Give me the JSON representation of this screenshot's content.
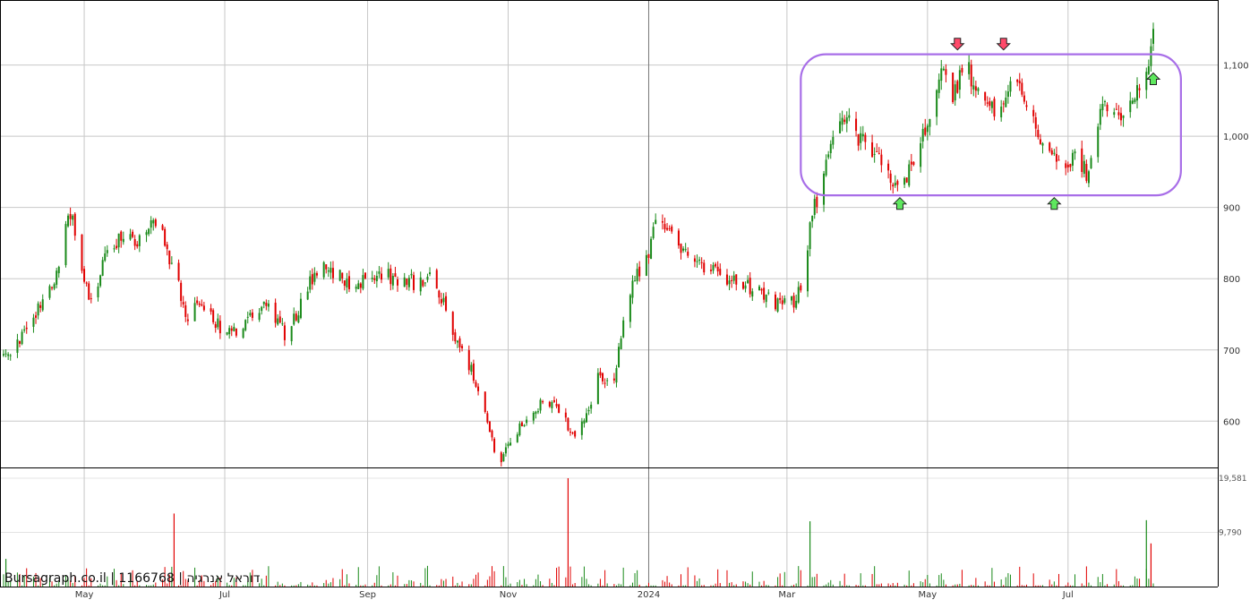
{
  "watermark": "Bursagraph.co.il | 1166768 | דוראל אנרגיה",
  "colors": {
    "up": "#1a8a1a",
    "down": "#e00000",
    "grid": "#c8c8c8",
    "frame": "#000000",
    "pattern_box": "#a86ee8",
    "arrow_up": "#5ee85e",
    "arrow_down": "#ff4a6a"
  },
  "chart_data": {
    "type": "candlestick",
    "title": "",
    "xlabel": "",
    "ylabel": "",
    "price_ylim": [
      535,
      1190
    ],
    "volume_ylim": [
      0,
      19581
    ],
    "price_ticks": [
      600,
      700,
      800,
      900,
      1000,
      1100
    ],
    "price_tick_labels": [
      "600",
      "700",
      "800",
      "900",
      "1,000",
      "1,100"
    ],
    "volume_ticks": [
      9790,
      19581
    ],
    "volume_tick_labels": [
      "9,790",
      "19,581"
    ],
    "x_start": "2023-03-27",
    "x_end": "2024-08-07",
    "month_ticks": [
      {
        "date": "2023-05-01",
        "label": "May"
      },
      {
        "date": "2023-07-01",
        "label": "Jul"
      },
      {
        "date": "2023-09-01",
        "label": "Sep"
      },
      {
        "date": "2023-11-01",
        "label": "Nov"
      },
      {
        "date": "2024-01-01",
        "label": "2024"
      },
      {
        "date": "2024-03-01",
        "label": "Mar"
      },
      {
        "date": "2024-05-01",
        "label": "May"
      },
      {
        "date": "2024-07-01",
        "label": "Jul"
      }
    ],
    "price_path": [
      [
        "2023-03-27",
        690
      ],
      [
        "2023-04-05",
        725
      ],
      [
        "2023-04-12",
        760
      ],
      [
        "2023-04-18",
        790
      ],
      [
        "2023-04-23",
        870
      ],
      [
        "2023-04-26",
        890
      ],
      [
        "2023-04-30",
        800
      ],
      [
        "2023-05-04",
        770
      ],
      [
        "2023-05-10",
        830
      ],
      [
        "2023-05-18",
        860
      ],
      [
        "2023-05-26",
        855
      ],
      [
        "2023-06-02",
        885
      ],
      [
        "2023-06-08",
        820
      ],
      [
        "2023-06-15",
        745
      ],
      [
        "2023-06-20",
        770
      ],
      [
        "2023-06-26",
        740
      ],
      [
        "2023-07-04",
        720
      ],
      [
        "2023-07-10",
        735
      ],
      [
        "2023-07-17",
        765
      ],
      [
        "2023-07-24",
        745
      ],
      [
        "2023-07-28",
        715
      ],
      [
        "2023-08-04",
        775
      ],
      [
        "2023-08-10",
        815
      ],
      [
        "2023-08-17",
        810
      ],
      [
        "2023-08-24",
        790
      ],
      [
        "2023-08-31",
        795
      ],
      [
        "2023-09-07",
        805
      ],
      [
        "2023-09-14",
        800
      ],
      [
        "2023-09-21",
        795
      ],
      [
        "2023-09-28",
        800
      ],
      [
        "2023-10-03",
        775
      ],
      [
        "2023-10-08",
        720
      ],
      [
        "2023-10-15",
        680
      ],
      [
        "2023-10-22",
        610
      ],
      [
        "2023-10-28",
        540
      ],
      [
        "2023-11-03",
        575
      ],
      [
        "2023-11-10",
        610
      ],
      [
        "2023-11-17",
        630
      ],
      [
        "2023-11-24",
        610
      ],
      [
        "2023-12-01",
        575
      ],
      [
        "2023-12-06",
        620
      ],
      [
        "2023-12-11",
        670
      ],
      [
        "2023-12-16",
        640
      ],
      [
        "2023-12-21",
        740
      ],
      [
        "2023-12-26",
        800
      ],
      [
        "2024-01-01",
        840
      ],
      [
        "2024-01-04",
        875
      ],
      [
        "2024-01-10",
        865
      ],
      [
        "2024-01-18",
        830
      ],
      [
        "2024-01-26",
        815
      ],
      [
        "2024-02-06",
        800
      ],
      [
        "2024-02-16",
        785
      ],
      [
        "2024-02-26",
        765
      ],
      [
        "2024-03-04",
        770
      ],
      [
        "2024-03-08",
        800
      ],
      [
        "2024-03-12",
        890
      ],
      [
        "2024-03-18",
        960
      ],
      [
        "2024-03-25",
        1040
      ],
      [
        "2024-04-01",
        1000
      ],
      [
        "2024-04-08",
        975
      ],
      [
        "2024-04-15",
        935
      ],
      [
        "2024-04-23",
        950
      ],
      [
        "2024-04-30",
        1010
      ],
      [
        "2024-05-06",
        1090
      ],
      [
        "2024-05-12",
        1060
      ],
      [
        "2024-05-18",
        1100
      ],
      [
        "2024-05-25",
        1040
      ],
      [
        "2024-06-01",
        1030
      ],
      [
        "2024-06-08",
        1090
      ],
      [
        "2024-06-15",
        1020
      ],
      [
        "2024-06-22",
        990
      ],
      [
        "2024-06-29",
        940
      ],
      [
        "2024-07-04",
        975
      ],
      [
        "2024-07-10",
        945
      ],
      [
        "2024-07-16",
        1040
      ],
      [
        "2024-07-23",
        1030
      ],
      [
        "2024-07-29",
        1050
      ],
      [
        "2024-08-02",
        1080
      ],
      [
        "2024-08-05",
        1110
      ],
      [
        "2024-08-07",
        1140
      ]
    ],
    "volume_spikes": [
      {
        "date": "2023-03-28",
        "value": 5000,
        "up": true
      },
      {
        "date": "2023-06-09",
        "value": 13200,
        "up": false
      },
      {
        "date": "2023-11-27",
        "value": 19581,
        "up": false
      },
      {
        "date": "2024-03-11",
        "value": 11800,
        "up": true
      },
      {
        "date": "2024-08-04",
        "value": 12000,
        "up": true
      },
      {
        "date": "2024-08-06",
        "value": 7800,
        "up": false
      }
    ],
    "annotations": {
      "box": {
        "date_start": "2024-03-07",
        "date_end": "2024-08-19",
        "price_low": 917,
        "price_high": 1115
      },
      "up_arrows": [
        {
          "date": "2024-04-19",
          "price": 905
        },
        {
          "date": "2024-06-25",
          "price": 905
        },
        {
          "date": "2024-08-07",
          "price": 1080
        }
      ],
      "down_arrows": [
        {
          "date": "2024-05-14",
          "price": 1130
        },
        {
          "date": "2024-06-03",
          "price": 1130
        }
      ]
    }
  }
}
